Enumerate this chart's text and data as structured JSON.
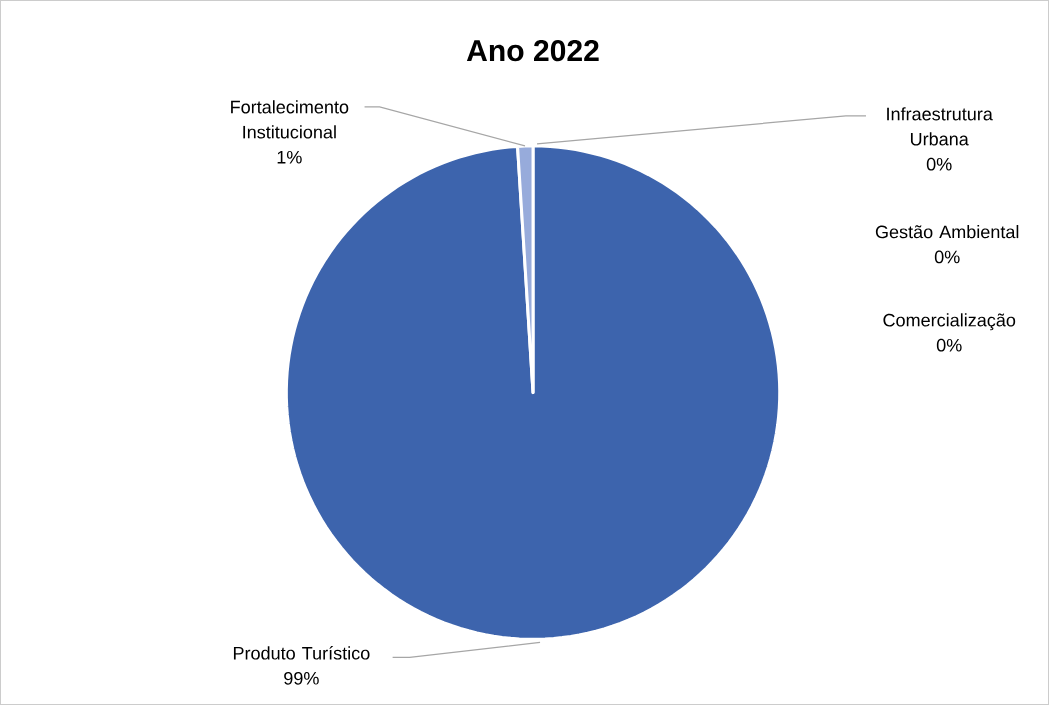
{
  "chart_data": {
    "type": "pie",
    "title": "Ano 2022",
    "categories": [
      "Produto Turístico",
      "Fortalecimento Institucional",
      "Infraestrutura Urbana",
      "Gestão Ambiental",
      "Comercialização"
    ],
    "values": [
      99,
      1,
      0,
      0,
      0
    ],
    "value_labels": [
      "99%",
      "1%",
      "0%",
      "0%",
      "0%"
    ],
    "colors": [
      "#3d64ad",
      "#97abdb",
      "#a5a5a5",
      "#ffc000",
      "#5b9bd5"
    ]
  }
}
